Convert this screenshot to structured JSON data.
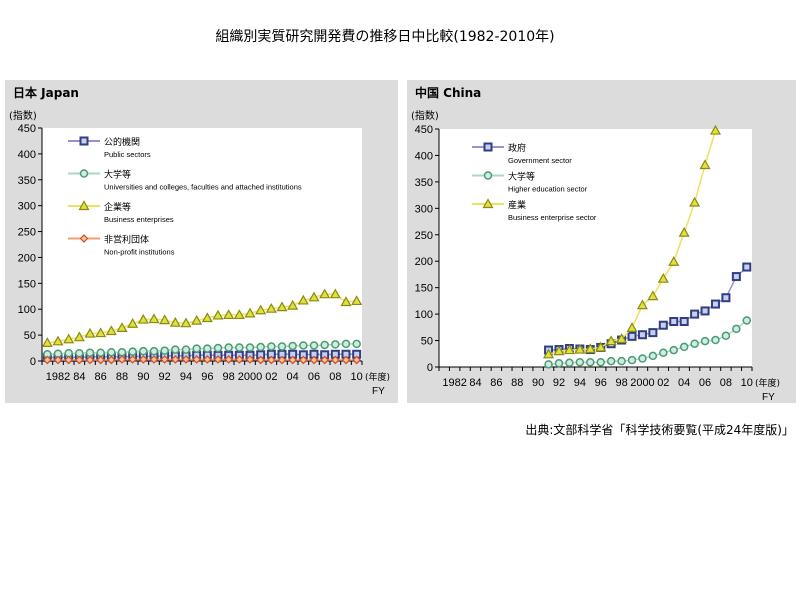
{
  "title": "組織別実質研究開発費の推移日中比較(1982-2010年)",
  "source": "出典:文部科学省「科学技術要覧(平成24年度版)」",
  "chart_data": [
    {
      "type": "line",
      "panel": "jp",
      "title": "日本 Japan",
      "ylabel": "(指数)",
      "xlabel_jp": "(年度)",
      "xlabel_en": "FY",
      "ylim": [
        0,
        450
      ],
      "yticks": [
        0,
        50,
        100,
        150,
        200,
        250,
        300,
        350,
        400,
        450
      ],
      "x_range": [
        1981,
        2010
      ],
      "xtick_labels": [
        "1982",
        "84",
        "86",
        "88",
        "90",
        "92",
        "94",
        "96",
        "98",
        "2000",
        "02",
        "04",
        "06",
        "08",
        "10"
      ],
      "series": [
        {
          "name_jp": "公的機関",
          "name_en": "Public sectors",
          "line": "#9b8fd0",
          "marker": "square",
          "mcolor": "#2f3f7f",
          "start": 1981,
          "values": [
            7,
            7,
            7,
            7,
            8,
            8,
            8,
            8,
            9,
            9,
            9,
            10,
            10,
            10,
            11,
            11,
            11,
            11,
            11,
            11,
            12,
            13,
            13,
            13,
            12,
            13,
            12,
            13,
            13,
            13
          ]
        },
        {
          "name_jp": "大学等",
          "name_en": "Universities and colleges, faculties and attached institutions",
          "line": "#a8d8c0",
          "marker": "circle",
          "mcolor": "#4c9a74",
          "start": 1981,
          "values": [
            13,
            14,
            15,
            15,
            16,
            16,
            17,
            17,
            18,
            19,
            19,
            20,
            22,
            22,
            24,
            24,
            25,
            26,
            26,
            26,
            27,
            28,
            28,
            29,
            30,
            30,
            31,
            32,
            33,
            33
          ]
        },
        {
          "name_jp": "企業等",
          "name_en": "Business enterprises",
          "line": "#eee060",
          "marker": "triangle",
          "mcolor": "#8a8a10",
          "start": 1981,
          "values": [
            35,
            38,
            42,
            46,
            53,
            54,
            58,
            64,
            72,
            80,
            81,
            79,
            74,
            73,
            78,
            83,
            88,
            89,
            89,
            92,
            98,
            101,
            104,
            107,
            117,
            123,
            129,
            129,
            114,
            116
          ]
        },
        {
          "name_jp": "非営利団体",
          "name_en": "Non-profit institutions",
          "line": "#f0a070",
          "marker": "diamond",
          "mcolor": "#d05020",
          "start": 1981,
          "values": [
            2,
            2,
            2,
            2,
            2,
            2,
            2,
            3,
            3,
            3,
            3,
            3,
            3,
            3,
            3,
            3,
            3,
            3,
            3,
            3,
            2,
            2,
            2,
            2,
            2,
            2,
            2,
            2,
            2,
            2
          ]
        }
      ]
    },
    {
      "type": "line",
      "panel": "cn",
      "title": "中国 China",
      "ylabel": "(指数)",
      "xlabel_jp": "(年度)",
      "xlabel_en": "FY",
      "ylim": [
        0,
        450
      ],
      "yticks": [
        0,
        50,
        100,
        150,
        200,
        250,
        300,
        350,
        400,
        450
      ],
      "x_range": [
        1981,
        2010
      ],
      "xtick_labels": [
        "1982",
        "84",
        "86",
        "88",
        "90",
        "92",
        "94",
        "96",
        "98",
        "2000",
        "02",
        "04",
        "06",
        "08",
        "10"
      ],
      "series": [
        {
          "name_jp": "政府",
          "name_en": "Government sector",
          "line": "#9b8fd0",
          "marker": "square",
          "mcolor": "#2f3f7f",
          "start": 1991,
          "values": [
            32,
            33,
            35,
            34,
            33,
            37,
            44,
            51,
            58,
            61,
            65,
            79,
            86,
            86,
            100,
            106,
            119,
            131,
            171,
            189
          ]
        },
        {
          "name_jp": "大学等",
          "name_en": "Higher education sector",
          "line": "#a8d8c0",
          "marker": "circle",
          "mcolor": "#4c9a74",
          "start": 1991,
          "values": [
            5,
            7,
            8,
            9,
            9,
            9,
            11,
            11,
            13,
            16,
            21,
            27,
            32,
            38,
            44,
            49,
            51,
            59,
            72,
            88
          ]
        },
        {
          "name_jp": "産業",
          "name_en": "Business enterprise sector",
          "line": "#eee060",
          "marker": "triangle",
          "mcolor": "#8a8a10",
          "start": 1991,
          "values": [
            24,
            30,
            32,
            33,
            34,
            37,
            49,
            53,
            74,
            117,
            134,
            167,
            199,
            254,
            311,
            382,
            447
          ]
        }
      ]
    }
  ]
}
